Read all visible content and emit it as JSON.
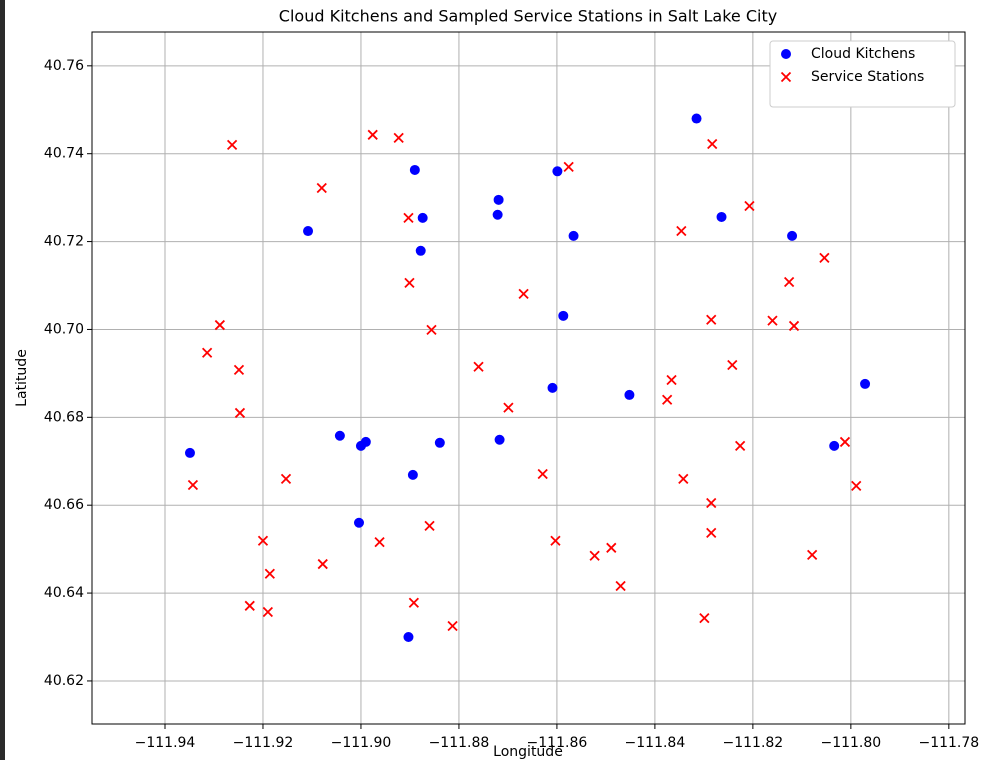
{
  "chart_data": {
    "type": "scatter",
    "title": "Cloud Kitchens and Sampled Service Stations in Salt Lake City",
    "x_label": "Longitude",
    "y_label": "Latitude",
    "xlim": [
      -111.9549,
      -111.7767
    ],
    "ylim": [
      40.6102,
      40.7677
    ],
    "xticks": [
      {
        "value": -111.94,
        "label": "−111.94"
      },
      {
        "value": -111.92,
        "label": "−111.92"
      },
      {
        "value": -111.9,
        "label": "−111.90"
      },
      {
        "value": -111.88,
        "label": "−111.88"
      },
      {
        "value": -111.86,
        "label": "−111.86"
      },
      {
        "value": -111.84,
        "label": "−111.84"
      },
      {
        "value": -111.82,
        "label": "−111.82"
      },
      {
        "value": -111.8,
        "label": "−111.80"
      },
      {
        "value": -111.78,
        "label": "−111.78"
      }
    ],
    "yticks": [
      {
        "value": 40.62,
        "label": "40.62"
      },
      {
        "value": 40.64,
        "label": "40.64"
      },
      {
        "value": 40.66,
        "label": "40.66"
      },
      {
        "value": 40.68,
        "label": "40.68"
      },
      {
        "value": 40.7,
        "label": "40.70"
      },
      {
        "value": 40.72,
        "label": "40.72"
      },
      {
        "value": 40.74,
        "label": "40.74"
      },
      {
        "value": 40.76,
        "label": "40.76"
      }
    ],
    "grid": true,
    "legend": "upper right",
    "series": [
      {
        "name": "Cloud Kitchens",
        "color": "#0000ff",
        "marker": "o",
        "x": [
          -111.8315,
          -111.889,
          -111.8599,
          -111.8719,
          -111.9108,
          -111.8874,
          -111.8721,
          -111.8264,
          -111.8566,
          -111.812,
          -111.8878,
          -111.8587,
          -111.8609,
          -111.8452,
          -111.7971,
          -111.9043,
          -111.899,
          -111.9,
          -111.8839,
          -111.8717,
          -111.9349,
          -111.8034,
          -111.8894,
          -111.9004,
          -111.8903
        ],
        "y": [
          40.748,
          40.7363,
          40.736,
          40.7295,
          40.7224,
          40.7254,
          40.7261,
          40.7256,
          40.7213,
          40.7213,
          40.7179,
          40.7031,
          40.6867,
          40.6851,
          40.6876,
          40.6758,
          40.6744,
          40.6735,
          40.6742,
          40.6749,
          40.6719,
          40.6735,
          40.6669,
          40.656,
          40.63
        ]
      },
      {
        "name": "Service Stations",
        "color": "#ff0000",
        "marker": "x",
        "x": [
          -111.9263,
          -111.8976,
          -111.8923,
          -111.8576,
          -111.8283,
          -111.908,
          -111.8207,
          -111.8903,
          -111.8346,
          -111.8901,
          -111.8054,
          -111.8126,
          -111.8668,
          -111.9288,
          -111.8856,
          -111.8285,
          -111.816,
          -111.8116,
          -111.9314,
          -111.9249,
          -111.876,
          -111.8242,
          -111.8366,
          -111.8375,
          -111.9247,
          -111.8699,
          -111.8226,
          -111.8012,
          -111.9343,
          -111.9153,
          -111.8629,
          -111.8342,
          -111.7989,
          -111.8285,
          -111.886,
          -111.8285,
          -111.92,
          -111.8962,
          -111.8603,
          -111.8489,
          -111.8523,
          -111.8079,
          -111.9078,
          -111.9186,
          -111.847,
          -111.9227,
          -111.919,
          -111.8892,
          -111.8813,
          -111.8299
        ],
        "y": [
          40.742,
          40.7443,
          40.7436,
          40.737,
          40.7422,
          40.7322,
          40.7281,
          40.7254,
          40.7224,
          40.7106,
          40.7163,
          40.7108,
          40.7081,
          40.701,
          40.6999,
          40.7022,
          40.702,
          40.7008,
          40.6947,
          40.6908,
          40.6915,
          40.6919,
          40.6885,
          40.684,
          40.681,
          40.6822,
          40.6735,
          40.6744,
          40.6646,
          40.666,
          40.6671,
          40.666,
          40.6644,
          40.6605,
          40.6553,
          40.6537,
          40.6519,
          40.6516,
          40.6519,
          40.6503,
          40.6485,
          40.6487,
          40.6466,
          40.6444,
          40.6416,
          40.6371,
          40.6357,
          40.6378,
          40.6325,
          40.6343
        ]
      }
    ]
  }
}
